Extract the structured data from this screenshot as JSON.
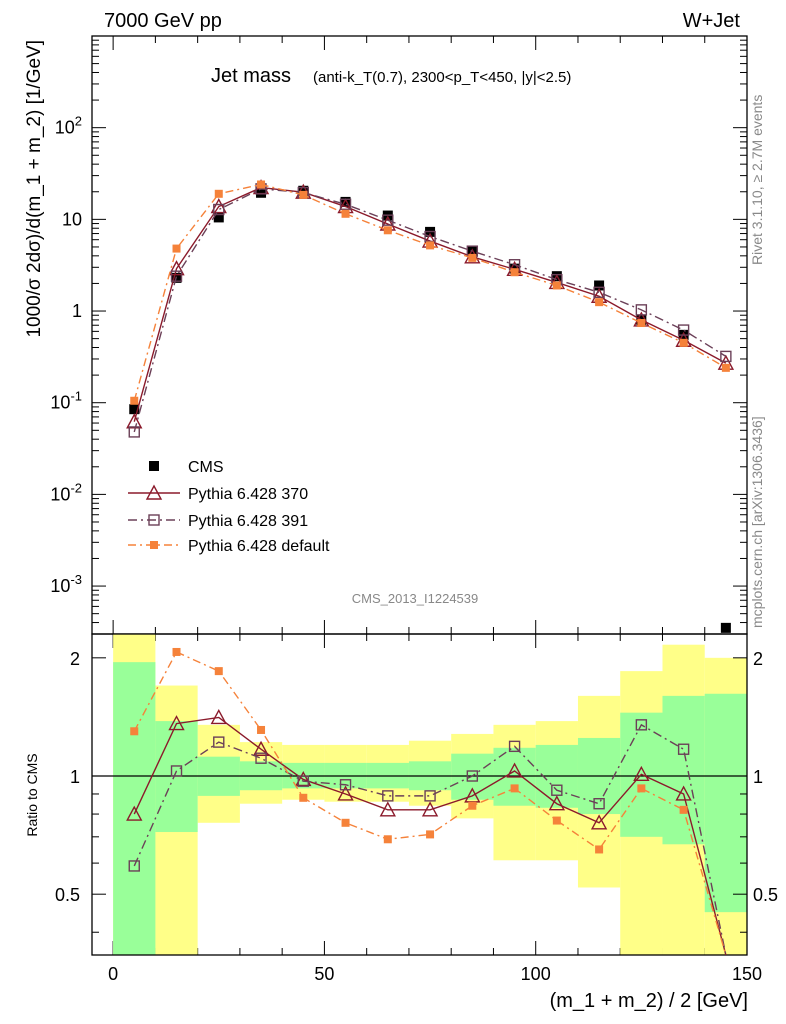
{
  "header": {
    "left": "7000 GeV pp",
    "right": "W+Jet"
  },
  "side": {
    "rivet": "Rivet 3.1.10, ≥ 2.7M events",
    "mcplots": "mcplots.cern.ch [arXiv:1306.3436]"
  },
  "analysis_id": "CMS_2013_I1224539",
  "colors": {
    "cms": "#000000",
    "p370": "#8b1a2b",
    "p391": "#6b4058",
    "pdef": "#f5823a",
    "green": "#99ff99",
    "yellow": "#ffff88"
  },
  "chart_data": [
    {
      "type": "scatter",
      "title": "Jet mass",
      "title_sub": "(anti-k_T(0.7), 2300<p_T<450, |y|<2.5)",
      "ylabel": "1000/σ 2dσ)/d(m_1 + m_2) [1/GeV]",
      "yscale": "log",
      "xlim": [
        -5,
        150
      ],
      "ylim": [
        0.0003,
        1000
      ],
      "ytick_labels": [
        "10^-3",
        "10^-2",
        "10^-1",
        "1",
        "10",
        "10^2"
      ],
      "x": [
        5,
        15,
        25,
        35,
        45,
        55,
        65,
        75,
        85,
        95,
        105,
        115,
        125,
        135,
        145
      ],
      "series": [
        {
          "name": "CMS",
          "values": [
            0.085,
            2.3,
            10.5,
            19.5,
            20.5,
            15.5,
            11,
            7.3,
            4.5,
            2.9,
            2.4,
            1.9,
            0.8,
            0.55,
            0.00035
          ]
        },
        {
          "name": "Pythia 6.428 370",
          "values": [
            0.062,
            2.9,
            13.8,
            22.2,
            19.8,
            13.8,
            8.9,
            5.8,
            3.9,
            2.85,
            2.05,
            1.45,
            0.8,
            0.48,
            0.27
          ]
        },
        {
          "name": "Pythia 6.428 391",
          "values": [
            0.048,
            2.4,
            12.8,
            21.5,
            19.6,
            14.6,
            9.8,
            6.5,
            4.5,
            3.2,
            2.2,
            1.6,
            1.03,
            0.62,
            0.32
          ]
        },
        {
          "name": "Pythia 6.428 default",
          "values": [
            0.105,
            4.8,
            19.0,
            24.0,
            18.5,
            11.5,
            7.6,
            5.2,
            3.8,
            2.65,
            1.9,
            1.25,
            0.74,
            0.45,
            0.24
          ]
        }
      ]
    },
    {
      "type": "line",
      "ylabel": "Ratio to CMS",
      "xlabel": "(m_1 + m_2) / 2 [GeV]",
      "xlim": [
        -5,
        150
      ],
      "ylim": [
        0.35,
        2.3
      ],
      "ytick_labels": [
        "0.5",
        "1",
        "2"
      ],
      "xtick_labels": [
        "0",
        "50",
        "100",
        "150"
      ],
      "bin_edges": [
        0,
        10,
        20,
        30,
        40,
        50,
        60,
        70,
        80,
        90,
        100,
        110,
        120,
        130,
        140,
        150
      ],
      "band_inner": [
        [
          0.35,
          1.95
        ],
        [
          0.72,
          1.38
        ],
        [
          0.89,
          1.12
        ],
        [
          0.92,
          1.09
        ],
        [
          0.93,
          1.08
        ],
        [
          0.93,
          1.08
        ],
        [
          0.93,
          1.08
        ],
        [
          0.92,
          1.09
        ],
        [
          0.87,
          1.14
        ],
        [
          0.84,
          1.18
        ],
        [
          0.83,
          1.2
        ],
        [
          0.8,
          1.25
        ],
        [
          0.7,
          1.45
        ],
        [
          0.67,
          1.6
        ],
        [
          0.45,
          1.62
        ]
      ],
      "band_outer": [
        [
          0.35,
          2.3
        ],
        [
          0.35,
          1.7
        ],
        [
          0.76,
          1.35
        ],
        [
          0.85,
          1.22
        ],
        [
          0.87,
          1.2
        ],
        [
          0.86,
          1.2
        ],
        [
          0.86,
          1.2
        ],
        [
          0.84,
          1.23
        ],
        [
          0.78,
          1.28
        ],
        [
          0.61,
          1.35
        ],
        [
          0.61,
          1.38
        ],
        [
          0.52,
          1.6
        ],
        [
          0.35,
          1.85
        ],
        [
          0.35,
          2.16
        ],
        [
          0.35,
          2.0
        ]
      ],
      "x": [
        5,
        15,
        25,
        35,
        45,
        55,
        65,
        75,
        85,
        95,
        105,
        115,
        125,
        135,
        145
      ],
      "series": [
        {
          "name": "Pythia 6.428 370",
          "values": [
            0.8,
            1.36,
            1.41,
            1.17,
            0.98,
            0.9,
            0.82,
            0.82,
            0.89,
            1.03,
            0.85,
            0.76,
            1.01,
            0.9,
            0.3
          ]
        },
        {
          "name": "Pythia 6.428 391",
          "values": [
            0.59,
            1.03,
            1.22,
            1.11,
            0.97,
            0.95,
            0.89,
            0.89,
            1.0,
            1.19,
            0.92,
            0.85,
            1.35,
            1.17,
            0.3
          ]
        },
        {
          "name": "Pythia 6.428 default",
          "values": [
            1.3,
            2.07,
            1.85,
            1.31,
            0.88,
            0.76,
            0.69,
            0.71,
            0.84,
            0.93,
            0.77,
            0.65,
            0.93,
            0.82,
            0.3
          ]
        }
      ]
    }
  ]
}
